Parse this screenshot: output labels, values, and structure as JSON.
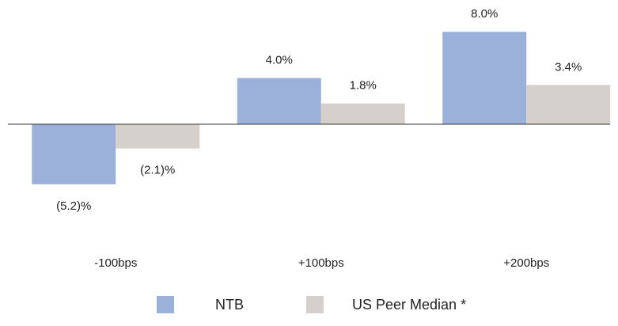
{
  "chart_data": {
    "type": "bar",
    "categories": [
      "-100bps",
      "+100bps",
      "+200bps"
    ],
    "series": [
      {
        "name": "NTB",
        "color": "#9cb1da",
        "values": [
          -5.2,
          4.0,
          8.0
        ],
        "value_labels": [
          "(5.2)%",
          "4.0%",
          "8.0%"
        ]
      },
      {
        "name": "US Peer Median *",
        "color": "#d6d0cd",
        "values": [
          -2.1,
          1.8,
          3.4
        ],
        "value_labels": [
          "(2.1)%",
          "1.8%",
          "3.4%"
        ]
      }
    ],
    "legend": "bottom"
  }
}
